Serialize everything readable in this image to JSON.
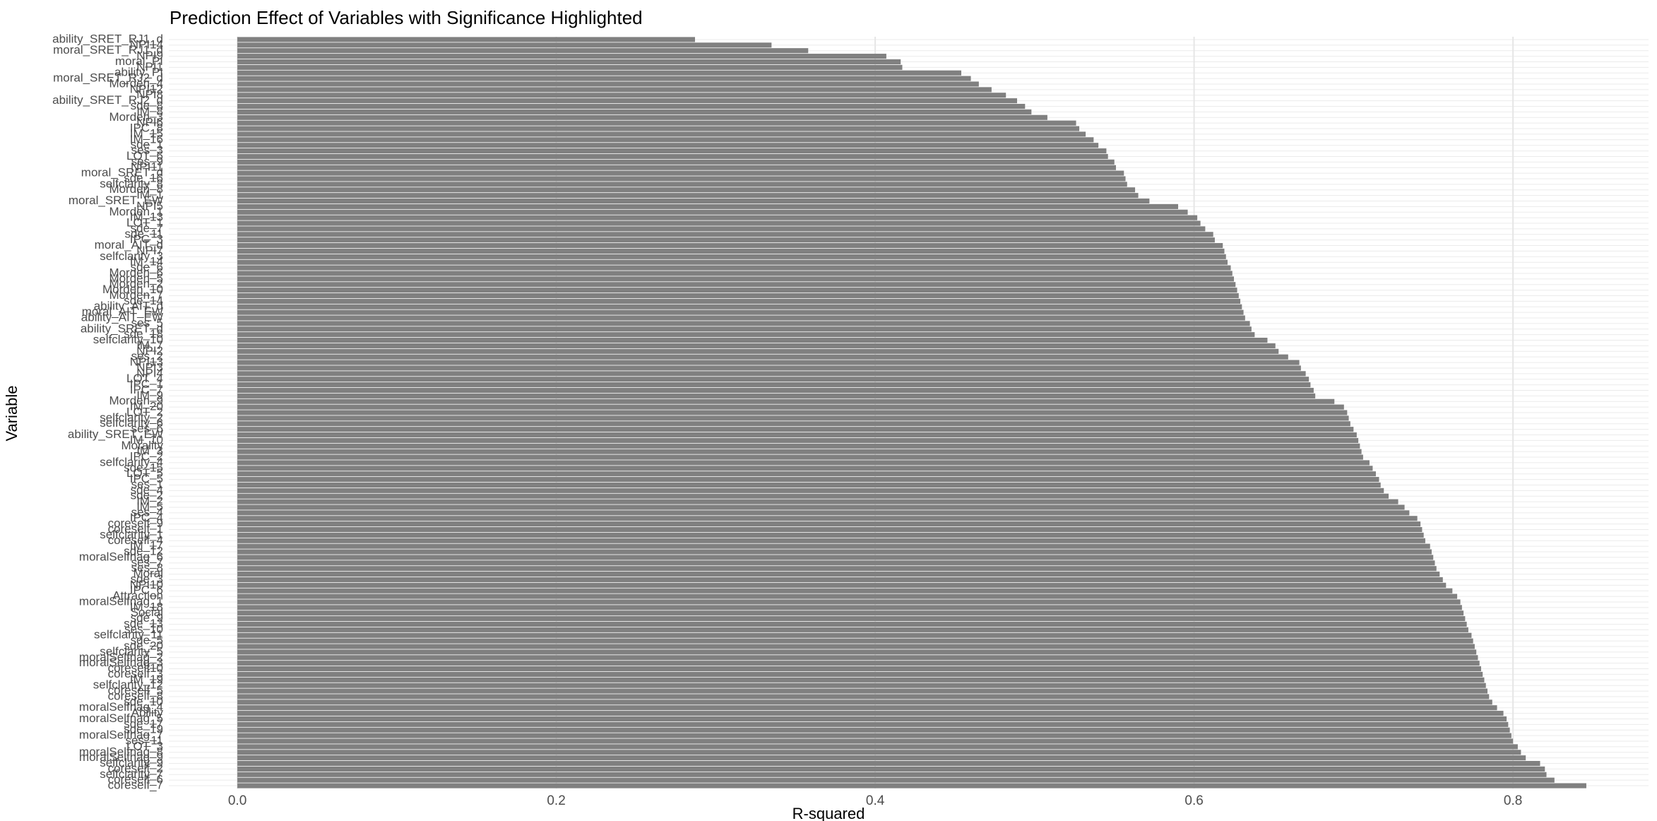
{
  "chart_data": {
    "type": "barh",
    "title": "Prediction Effect of Variables with Significance Highlighted",
    "xlabel": "R-squared",
    "ylabel": "Variable",
    "color": "#808080",
    "grid": true,
    "xlim": [
      -0.043,
      0.885
    ],
    "xticks": [
      {
        "value": 0,
        "label": "0.0"
      },
      0.2,
      0.4,
      0.6,
      0.8
    ],
    "categories": [
      "ability_SRET_RJ1_d",
      "NPI14",
      "moral_SRET_RJ1_d",
      "NPI9",
      "moral_PI",
      "NPI1",
      "ability_PI",
      "moral_SRET_RJ2_d",
      "Morden_4",
      "NPI12",
      "NPI8",
      "ability_SRET_RJ2_d",
      "sde_8",
      "IM_8",
      "Morden_3",
      "NPI6",
      "IPC_8",
      "IM_15",
      "IM_16",
      "sde_1",
      "ses_3",
      "LOT_6",
      "ses_9",
      "NPI11",
      "moral_SRET_d",
      "sde_16",
      "selfclarity_8",
      "Morden_8",
      "IM_1",
      "moral_SRET_EW",
      "NPI5",
      "Morden_1",
      "IM_13",
      "LOT_1",
      "sde_7",
      "sde_11",
      "IPC_3",
      "moral_AIT_d",
      "NPI7",
      "selfclarity_3",
      "IM_14",
      "sde_6",
      "Morden_6",
      "Morden_5",
      "Morden_2",
      "Morden_10",
      "Morden_7",
      "sde_14",
      "ability_AIT_d",
      "moral_AIT_EW",
      "ability_AIT_EW",
      "ses_5",
      "ability_SRET_d",
      "sde_18",
      "selfclarity_10",
      "IM_7",
      "NPI2",
      "ses_2",
      "NPI13",
      "NPI3",
      "NPI4",
      "LOT_4",
      "IPC_1",
      "IPC_7",
      "IM_9",
      "Morden_9",
      "IM_20",
      "LOT_2",
      "selfclarity_2",
      "selfclarity_6",
      "ses_6",
      "ability_SRET_EW",
      "IM_10",
      "Morality",
      "IM_3",
      "IPC_2",
      "selfclarity_4",
      "sde_15",
      "LOT_5",
      "IPC_5",
      "ses_1",
      "sde_4",
      "sde_2",
      "IM_2",
      "IM_5",
      "ses_4",
      "IPC_4",
      "coreself_9",
      "coreself_1",
      "selfclarity_1",
      "coreself_4",
      "IM_17",
      "sde_12",
      "moralSelfnag_6",
      "ses_7",
      "ses_8",
      "Moral",
      "sde_3",
      "NPI10",
      "IPC_6",
      "Attraction",
      "moralSelfnag_1",
      "IM_18",
      "Social",
      "sde_9",
      "sde_13",
      "ses_10",
      "selfclarity_11",
      "sde_5",
      "sde_20",
      "selfclarity_5",
      "moralSelfnag_2",
      "moralSelfnag_3",
      "coreself10",
      "coreself_3",
      "IM_19",
      "selfclarity_12",
      "coreself_5",
      "coreself_8",
      "sde_10",
      "moralSelfnag_4",
      "Ability",
      "moralSelfnag_5",
      "sde_17",
      "sde_19",
      "moralSelfnag_7",
      "ses_11",
      "LOT_3",
      "moralSelfnag_8",
      "moralSelfnag_9",
      "selfclarity_9",
      "coreself_2",
      "selfclarity_7",
      "coreself_6",
      "coreself_7"
    ],
    "values": [
      0.287,
      0.335,
      0.358,
      0.407,
      0.416,
      0.417,
      0.454,
      0.46,
      0.465,
      0.473,
      0.482,
      0.489,
      0.494,
      0.498,
      0.508,
      0.526,
      0.528,
      0.532,
      0.537,
      0.54,
      0.545,
      0.546,
      0.55,
      0.551,
      0.556,
      0.557,
      0.558,
      0.563,
      0.565,
      0.572,
      0.59,
      0.596,
      0.602,
      0.604,
      0.607,
      0.612,
      0.613,
      0.618,
      0.619,
      0.62,
      0.621,
      0.623,
      0.624,
      0.625,
      0.626,
      0.627,
      0.628,
      0.629,
      0.63,
      0.631,
      0.632,
      0.635,
      0.636,
      0.638,
      0.646,
      0.651,
      0.653,
      0.659,
      0.666,
      0.667,
      0.67,
      0.672,
      0.673,
      0.675,
      0.676,
      0.688,
      0.694,
      0.696,
      0.697,
      0.698,
      0.7,
      0.702,
      0.703,
      0.704,
      0.705,
      0.706,
      0.71,
      0.712,
      0.714,
      0.716,
      0.717,
      0.719,
      0.722,
      0.728,
      0.732,
      0.735,
      0.74,
      0.742,
      0.743,
      0.744,
      0.745,
      0.748,
      0.749,
      0.75,
      0.751,
      0.752,
      0.754,
      0.756,
      0.758,
      0.762,
      0.765,
      0.767,
      0.768,
      0.769,
      0.77,
      0.771,
      0.772,
      0.774,
      0.775,
      0.776,
      0.777,
      0.778,
      0.779,
      0.78,
      0.781,
      0.782,
      0.783,
      0.784,
      0.785,
      0.787,
      0.79,
      0.794,
      0.796,
      0.797,
      0.798,
      0.799,
      0.8,
      0.803,
      0.805,
      0.808,
      0.817,
      0.82,
      0.821,
      0.826,
      0.846
    ]
  }
}
